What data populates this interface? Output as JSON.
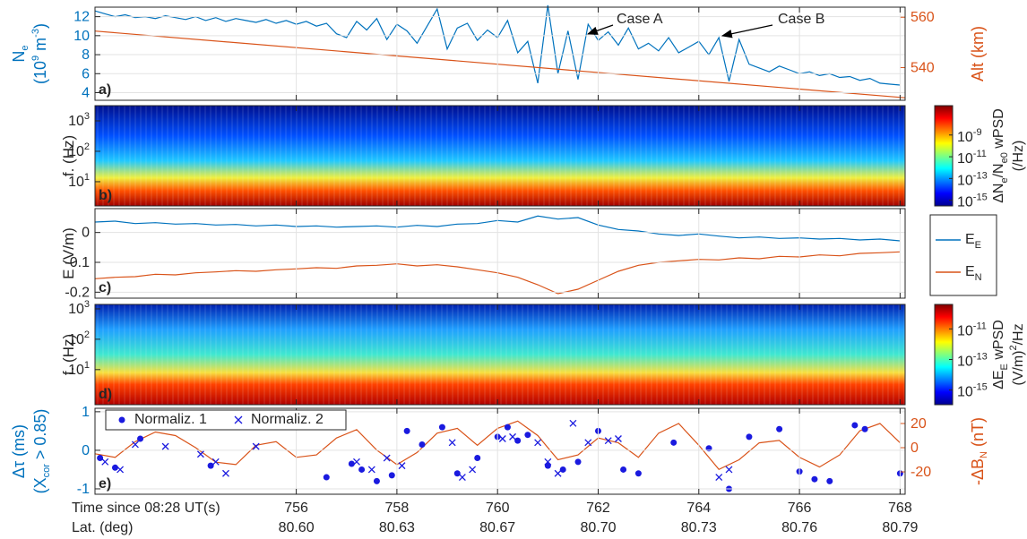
{
  "chart_data": [
    {
      "type": "line",
      "panel_label": "a)",
      "ylabel": [
        "N_{e}",
        "(10^{9} m^{-3})"
      ],
      "y2label": [
        "Alt (km)"
      ],
      "ycolor": "#0072bd",
      "y2color": "#d95319",
      "grid": true,
      "xlim": [
        752,
        768.1
      ],
      "xticks": [
        756,
        758,
        760,
        762,
        764,
        766,
        768
      ],
      "ylim": [
        3.2,
        13
      ],
      "yticks": [
        4,
        6,
        8,
        10,
        12
      ],
      "y2lim": [
        527,
        564
      ],
      "y2ticks": [
        540,
        560
      ],
      "annotations": [
        "Case A",
        "Case B"
      ],
      "x": [
        752.0,
        752.2,
        752.4,
        752.6,
        752.8,
        753.0,
        753.2,
        753.4,
        753.6,
        753.8,
        754.0,
        754.2,
        754.4,
        754.6,
        754.8,
        755.0,
        755.2,
        755.4,
        755.6,
        755.8,
        756.0,
        756.2,
        756.4,
        756.6,
        756.8,
        757.0,
        757.2,
        757.4,
        757.6,
        757.8,
        758.0,
        758.2,
        758.4,
        758.6,
        758.8,
        759.0,
        759.2,
        759.4,
        759.6,
        759.8,
        760.0,
        760.2,
        760.4,
        760.6,
        760.8,
        761.0,
        761.2,
        761.4,
        761.6,
        761.8,
        762.0,
        762.2,
        762.4,
        762.6,
        762.8,
        763.0,
        763.2,
        763.4,
        763.6,
        763.8,
        764.0,
        764.2,
        764.4,
        764.6,
        764.8,
        765.0,
        765.2,
        765.4,
        765.6,
        765.8,
        766.0,
        766.2,
        766.4,
        766.6,
        766.8,
        767.0,
        767.2,
        767.4,
        767.6,
        767.8,
        768.0
      ],
      "series": [
        {
          "color": "#0072bd",
          "values": [
            12.6,
            12.3,
            12.0,
            12.2,
            11.9,
            12.0,
            11.8,
            12.1,
            11.9,
            11.7,
            12.0,
            11.6,
            11.9,
            11.5,
            11.8,
            11.6,
            11.4,
            11.7,
            11.3,
            11.6,
            11.2,
            11.5,
            11.0,
            11.3,
            10.2,
            9.8,
            11.5,
            10.6,
            11.8,
            9.6,
            11.2,
            10.5,
            9.2,
            11.0,
            12.8,
            8.6,
            10.8,
            11.3,
            9.5,
            10.6,
            9.8,
            11.6,
            8.2,
            9.4,
            5.0,
            13.2,
            6.0,
            10.5,
            5.4,
            11.2,
            9.5,
            10.4,
            9.0,
            10.8,
            8.6,
            9.2,
            8.4,
            9.8,
            8.2,
            8.8,
            9.4,
            8.0,
            9.8,
            5.2,
            9.6,
            7.0,
            6.6,
            6.2,
            6.8,
            6.4,
            6.0,
            6.2,
            5.8,
            6.0,
            5.6,
            5.7,
            5.3,
            5.5,
            5.0,
            4.9,
            4.8
          ]
        },
        {
          "color": "#d95319",
          "axis": "y2",
          "x": [
            752,
            768.1
          ],
          "values": [
            554.5,
            528
          ]
        }
      ]
    },
    {
      "type": "spectrogram",
      "panel_label": "b)",
      "ylabel": [
        "f. (Hz)"
      ],
      "log_y": true,
      "xlim": [
        752,
        768.1
      ],
      "xticks": [
        756,
        758,
        760,
        762,
        764,
        766,
        768
      ],
      "ylim": [
        1.6,
        3160
      ],
      "yticks": [
        {
          "value": 10,
          "label": "10^{1}"
        },
        {
          "value": 100,
          "label": "10^{2}"
        },
        {
          "value": 1000,
          "label": "10^{3}"
        }
      ],
      "colorbar": {
        "label": [
          "ΔN_{e}/N_{e0} wPSD",
          "(/Hz)"
        ],
        "clim": [
          3e-16,
          5e-07
        ],
        "ticks": [
          {
            "value": 1e-09,
            "label": "10^{-9}"
          },
          {
            "value": 1e-11,
            "label": "10^{-11}"
          },
          {
            "value": 1e-13,
            "label": "10^{-13}"
          },
          {
            "value": 1e-15,
            "label": "10^{-15}"
          }
        ]
      }
    },
    {
      "type": "line",
      "panel_label": "c)",
      "ylabel": [
        "E (V/m)"
      ],
      "grid": true,
      "legend": "outside right",
      "xlim": [
        752,
        768.1
      ],
      "xticks": [
        756,
        758,
        760,
        762,
        764,
        766,
        768
      ],
      "ylim": [
        -0.22,
        0.08
      ],
      "yticks": [
        -0.2,
        -0.1,
        0
      ],
      "x": [
        752.0,
        752.4,
        752.8,
        753.2,
        753.6,
        754.0,
        754.4,
        754.8,
        755.2,
        755.6,
        756.0,
        756.4,
        756.8,
        757.2,
        757.6,
        758.0,
        758.4,
        758.8,
        759.2,
        759.6,
        760.0,
        760.4,
        760.8,
        761.2,
        761.6,
        762.0,
        762.4,
        762.8,
        763.2,
        763.6,
        764.0,
        764.4,
        764.8,
        765.2,
        765.6,
        766.0,
        766.4,
        766.8,
        767.2,
        767.6,
        768.0
      ],
      "series": [
        {
          "name": "E_{E}",
          "color": "#0072bd",
          "values": [
            0.035,
            0.038,
            0.03,
            0.033,
            0.028,
            0.03,
            0.025,
            0.027,
            0.022,
            0.025,
            0.02,
            0.022,
            0.018,
            0.02,
            0.022,
            0.018,
            0.024,
            0.02,
            0.028,
            0.03,
            0.04,
            0.035,
            0.055,
            0.045,
            0.05,
            0.025,
            0.01,
            0.005,
            -0.005,
            -0.01,
            -0.005,
            -0.012,
            -0.018,
            -0.015,
            -0.02,
            -0.018,
            -0.022,
            -0.02,
            -0.025,
            -0.022,
            -0.028
          ]
        },
        {
          "name": "E_{N}",
          "color": "#d95319",
          "values": [
            -0.155,
            -0.15,
            -0.148,
            -0.14,
            -0.142,
            -0.135,
            -0.132,
            -0.128,
            -0.13,
            -0.125,
            -0.122,
            -0.118,
            -0.12,
            -0.112,
            -0.11,
            -0.105,
            -0.112,
            -0.108,
            -0.115,
            -0.125,
            -0.135,
            -0.15,
            -0.175,
            -0.205,
            -0.19,
            -0.16,
            -0.13,
            -0.11,
            -0.1,
            -0.095,
            -0.09,
            -0.092,
            -0.085,
            -0.088,
            -0.08,
            -0.082,
            -0.075,
            -0.078,
            -0.07,
            -0.068,
            -0.065
          ]
        }
      ]
    },
    {
      "type": "spectrogram",
      "panel_label": "d)",
      "ylabel": [
        "f. (Hz)"
      ],
      "log_y": true,
      "xlim": [
        752,
        768.1
      ],
      "xticks": [
        756,
        758,
        760,
        762,
        764,
        766,
        768
      ],
      "ylim": [
        0.7,
        1400
      ],
      "yticks": [
        {
          "value": 10,
          "label": "10^{1}"
        },
        {
          "value": 100,
          "label": "10^{2}"
        },
        {
          "value": 1000,
          "label": "10^{3}"
        }
      ],
      "colorbar": {
        "label": [
          "ΔE_{E} wPSD",
          "(V/m)^{2}/Hz"
        ],
        "clim": [
          1.1e-16,
          4e-10
        ],
        "ticks": [
          {
            "value": 1e-11,
            "label": "10^{-11}"
          },
          {
            "value": 1e-13,
            "label": "10^{-13}"
          },
          {
            "value": 1e-15,
            "label": "10^{-15}"
          }
        ]
      }
    },
    {
      "type": "line",
      "panel_label": "e)",
      "ylabel": [
        "Δτ (ms)",
        "(X_{cor} > 0.85)"
      ],
      "y2label": [
        "-ΔB_{N} (nT)"
      ],
      "ycolor": "#0072bd",
      "y2color": "#d95319",
      "grid": true,
      "legend": "upper left",
      "xlabel": "Time since 08:28 UT(s)",
      "x2label": "Lat. (deg)",
      "xlim": [
        752,
        768.1
      ],
      "xticks": [
        756,
        758,
        760,
        762,
        764,
        766,
        768
      ],
      "x2ticks": [
        {
          "value": 756,
          "label": "80.60"
        },
        {
          "value": 758,
          "label": "80.63"
        },
        {
          "value": 760,
          "label": "80.67"
        },
        {
          "value": 762,
          "label": "80.70"
        },
        {
          "value": 764,
          "label": "80.73"
        },
        {
          "value": 766,
          "label": "80.76"
        },
        {
          "value": 768,
          "label": "80.79"
        }
      ],
      "ylim": [
        -1.14,
        1.09
      ],
      "yticks": [
        -1,
        0,
        1
      ],
      "y2lim": [
        -38.5,
        32.6
      ],
      "y2ticks": [
        -20,
        0,
        20
      ],
      "x": [
        752.0,
        752.4,
        752.8,
        753.2,
        753.6,
        754.0,
        754.4,
        754.8,
        755.2,
        755.6,
        756.0,
        756.4,
        756.8,
        757.2,
        757.6,
        758.0,
        758.4,
        758.8,
        759.2,
        759.6,
        760.0,
        760.4,
        760.8,
        761.2,
        761.6,
        762.0,
        762.4,
        762.8,
        763.2,
        763.6,
        764.0,
        764.4,
        764.8,
        765.2,
        765.6,
        766.0,
        766.4,
        766.8,
        767.2,
        767.6,
        768.0
      ],
      "series": [
        {
          "color": "#d95319",
          "axis": "y2",
          "values": [
            -5,
            -8,
            5,
            13,
            10,
            0,
            -12,
            -14,
            2,
            5,
            -8,
            -6,
            8,
            15,
            -2,
            -14,
            -4,
            12,
            16,
            2,
            16,
            22,
            10,
            -10,
            -6,
            8,
            4,
            -8,
            12,
            20,
            2,
            -18,
            -10,
            4,
            6,
            -8,
            -16,
            -6,
            14,
            20,
            4
          ]
        },
        {
          "name": "Normaliz. 1",
          "color": "#1a1adf",
          "marker": "o",
          "x": [
            752.1,
            752.4,
            752.9,
            754.3,
            756.6,
            757.1,
            757.3,
            757.6,
            757.9,
            758.2,
            758.5,
            758.9,
            759.2,
            759.6,
            760.0,
            760.2,
            760.4,
            760.6,
            761.0,
            761.3,
            761.6,
            762.0,
            762.5,
            762.8,
            763.5,
            764.2,
            764.6,
            765.0,
            765.6,
            766.0,
            766.3,
            766.6,
            767.1,
            767.3,
            768.0
          ],
          "values": [
            -0.2,
            -0.45,
            0.3,
            -0.4,
            -0.7,
            -0.35,
            -0.5,
            -0.8,
            -0.65,
            0.5,
            0.15,
            0.6,
            -0.6,
            -0.2,
            0.35,
            0.6,
            0.25,
            0.4,
            -0.4,
            -0.5,
            -0.3,
            0.5,
            -0.5,
            -0.6,
            0.2,
            0.05,
            -1.0,
            0.35,
            0.55,
            -0.55,
            -0.75,
            -0.8,
            0.65,
            0.55,
            -0.6
          ]
        },
        {
          "name": "Normaliz. 2",
          "color": "#1a1adf",
          "marker": "x",
          "x": [
            752.2,
            752.5,
            752.8,
            753.4,
            754.1,
            754.4,
            754.6,
            755.2,
            757.2,
            757.5,
            757.8,
            758.1,
            759.1,
            759.3,
            759.5,
            760.1,
            760.3,
            760.8,
            761.0,
            761.2,
            761.5,
            761.8,
            762.2,
            762.4,
            764.4,
            764.6
          ],
          "values": [
            -0.3,
            -0.5,
            0.15,
            0.1,
            -0.1,
            -0.3,
            -0.6,
            0.1,
            -0.3,
            -0.5,
            -0.2,
            -0.4,
            0.2,
            -0.7,
            -0.5,
            0.3,
            0.35,
            0.2,
            -0.3,
            -0.6,
            0.7,
            0.2,
            0.25,
            0.3,
            -0.7,
            -0.5
          ]
        }
      ]
    }
  ]
}
